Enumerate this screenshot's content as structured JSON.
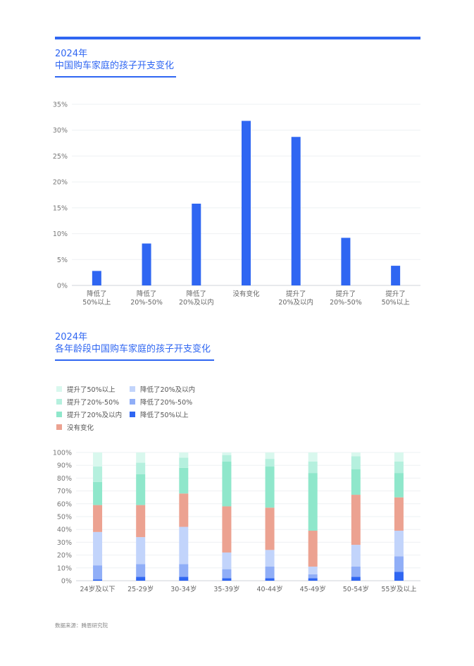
{
  "header": {
    "chart1_year": "2024年",
    "chart1_title": "中国购车家庭的孩子开支变化",
    "chart2_year": "2024年",
    "chart2_title": "各年龄段中国购车家庭的孩子开支变化"
  },
  "colors": {
    "accent": "#2f66f2",
    "stack": [
      "#2f66f2",
      "#90aef7",
      "#c2d4fb",
      "#eca291",
      "#8fe7cb",
      "#b5f0de",
      "#d9f8ee"
    ]
  },
  "source": "数据来源：腾恩研究院",
  "chart_data": [
    {
      "type": "bar",
      "categories": [
        [
          "降低了",
          "50%以上"
        ],
        [
          "降低了",
          "20%-50%"
        ],
        [
          "降低了",
          "20%及以内"
        ],
        [
          "没有变化"
        ],
        [
          "提升了",
          "20%及以内"
        ],
        [
          "提升了",
          "20%-50%"
        ],
        [
          "提升了",
          "50%以上"
        ]
      ],
      "values": [
        2.8,
        8.1,
        15.8,
        31.8,
        28.7,
        9.2,
        3.8
      ],
      "ylim": [
        0,
        35
      ],
      "yticks": [
        0,
        5,
        10,
        15,
        20,
        25,
        30,
        35
      ],
      "ytick_labels": [
        "0%",
        "5%",
        "10%",
        "15%",
        "20%",
        "25%",
        "30%",
        "35%"
      ],
      "grid": true
    },
    {
      "type": "bar",
      "stacked": true,
      "categories": [
        "24岁及以下",
        "25-29岁",
        "30-34岁",
        "35-39岁",
        "40-44岁",
        "45-49岁",
        "50-54岁",
        "55岁及以上"
      ],
      "series": [
        {
          "name": "降低了50%以上",
          "values": [
            1,
            3,
            3,
            2,
            2,
            2,
            3,
            7
          ]
        },
        {
          "name": "降低了20%-50%",
          "values": [
            11,
            10,
            10,
            7,
            9,
            3,
            8,
            12
          ]
        },
        {
          "name": "降低了20%及以内",
          "values": [
            26,
            21,
            29,
            13,
            13,
            6,
            17,
            20
          ]
        },
        {
          "name": "没有变化",
          "values": [
            21,
            25,
            26,
            36,
            33,
            28,
            39,
            26
          ]
        },
        {
          "name": "提升了20%及以内",
          "values": [
            18,
            24,
            20,
            35,
            32,
            45,
            20,
            19
          ]
        },
        {
          "name": "提升了20%-50%",
          "values": [
            12,
            9,
            8,
            5,
            6,
            9,
            10,
            9
          ]
        },
        {
          "name": "提升了50%以上",
          "values": [
            11,
            8,
            4,
            2,
            5,
            7,
            3,
            7
          ]
        }
      ],
      "legend_order": [
        "提升了50%以上",
        "降低了20%及以内",
        "提升了20%-50%",
        "降低了20%-50%",
        "提升了20%及以内",
        "降低了50%以上",
        "没有变化"
      ],
      "ylim": [
        0,
        100
      ],
      "yticks": [
        0,
        10,
        20,
        30,
        40,
        50,
        60,
        70,
        80,
        90,
        100
      ],
      "ytick_labels": [
        "0%",
        "10%",
        "20%",
        "30%",
        "40%",
        "50%",
        "60%",
        "70%",
        "80%",
        "90%",
        "100%"
      ],
      "grid": true,
      "legend_position": "top-left"
    }
  ]
}
